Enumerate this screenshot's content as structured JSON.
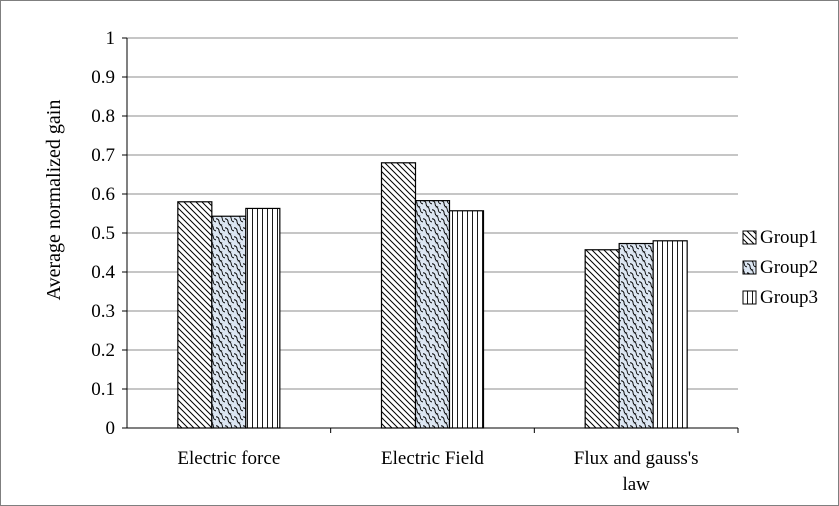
{
  "chart_data": {
    "type": "bar",
    "title": "",
    "xlabel": "",
    "ylabel": "Average normalized gain",
    "categories": [
      "Electric force",
      "Electric Field",
      "Flux and gauss's law"
    ],
    "category_lines": [
      [
        "Electric force"
      ],
      [
        "Electric Field"
      ],
      [
        "Flux and gauss's",
        "law"
      ]
    ],
    "series": [
      {
        "name": "Group1",
        "values": [
          0.58,
          0.68,
          0.457
        ],
        "pattern": "diagonal-hatch"
      },
      {
        "name": "Group2",
        "values": [
          0.543,
          0.583,
          0.473
        ],
        "pattern": "wave-hatch"
      },
      {
        "name": "Group3",
        "values": [
          0.563,
          0.557,
          0.48
        ],
        "pattern": "vertical-lines"
      }
    ],
    "ylim": [
      0,
      1
    ],
    "yticks": [
      0,
      0.1,
      0.2,
      0.3,
      0.4,
      0.5,
      0.6,
      0.7,
      0.8,
      0.9,
      1
    ],
    "ytick_labels": [
      "0",
      "0.1",
      "0.2",
      "0.3",
      "0.4",
      "0.5",
      "0.6",
      "0.7",
      "0.8",
      "0.9",
      "1"
    ],
    "grid": true,
    "legend_position": "right",
    "colors": {
      "background": "#ffffff",
      "border": "#7f7f7f",
      "grid": "#8c8c8c",
      "bar_fill": "#ffffff",
      "group2_fill": "#dce6f2",
      "bar_stroke": "#000000"
    }
  }
}
